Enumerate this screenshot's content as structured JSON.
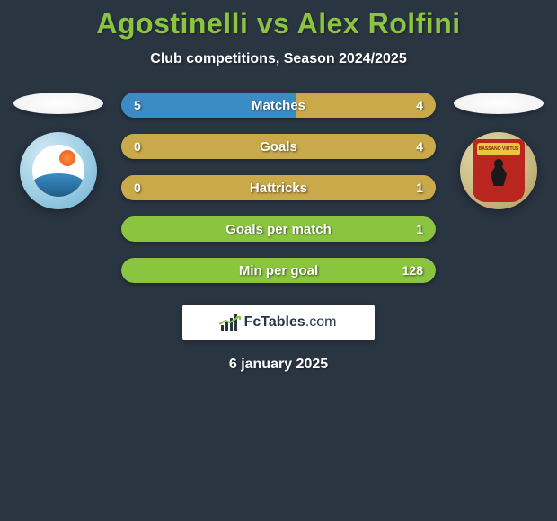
{
  "title": "Agostinelli vs Alex Rolfini",
  "subtitle": "Club competitions, Season 2024/2025",
  "date": "6 january 2025",
  "brand": {
    "name": "FcTables",
    "suffix": ".com"
  },
  "colors": {
    "title": "#8bc540",
    "background": "#2a3542",
    "pill_neutral": "#8bc540",
    "pill_left": "#3b8cc4",
    "pill_right": "#c9a94a",
    "text": "#ffffff"
  },
  "left_team": {
    "badge_bg": "#9ccde3",
    "sun": "#ff7a2e",
    "wave": "#2f78ad"
  },
  "right_team": {
    "badge_bg": "#c9bb82",
    "shield": "#b8261f",
    "banner": "#e8c642"
  },
  "stats": [
    {
      "label": "Matches",
      "left_val": "5",
      "right_val": "4",
      "left_pct": 55.5,
      "right_pct": 44.5,
      "left_color": "#3b8cc4",
      "right_color": "#c9a94a",
      "bg_color": "#8bc540"
    },
    {
      "label": "Goals",
      "left_val": "0",
      "right_val": "4",
      "left_pct": 0,
      "right_pct": 100,
      "left_color": "#3b8cc4",
      "right_color": "#c9a94a",
      "bg_color": "#c9a94a"
    },
    {
      "label": "Hattricks",
      "left_val": "0",
      "right_val": "1",
      "left_pct": 0,
      "right_pct": 100,
      "left_color": "#3b8cc4",
      "right_color": "#c9a94a",
      "bg_color": "#c9a94a"
    },
    {
      "label": "Goals per match",
      "left_val": "",
      "right_val": "1",
      "left_pct": 0,
      "right_pct": 0,
      "left_color": "#3b8cc4",
      "right_color": "#c9a94a",
      "bg_color": "#8bc540"
    },
    {
      "label": "Min per goal",
      "left_val": "",
      "right_val": "128",
      "left_pct": 0,
      "right_pct": 0,
      "left_color": "#3b8cc4",
      "right_color": "#c9a94a",
      "bg_color": "#8bc540"
    }
  ]
}
